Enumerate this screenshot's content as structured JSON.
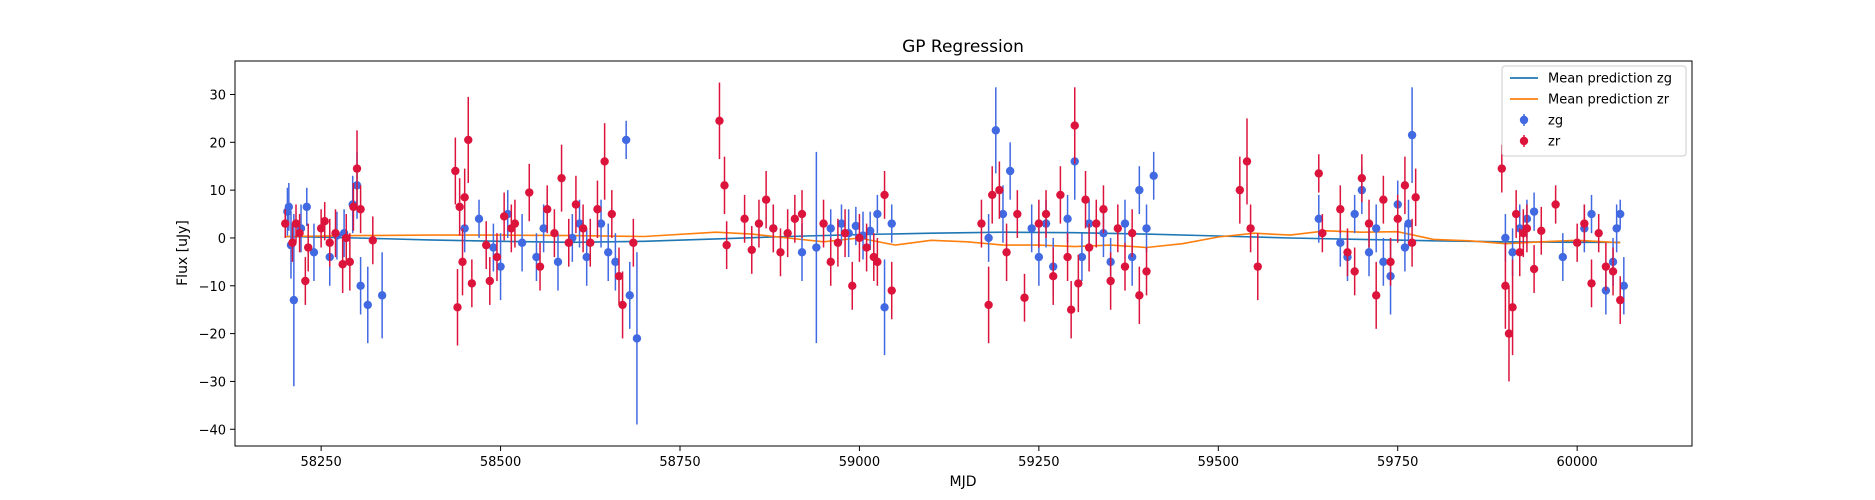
{
  "chart_data": {
    "type": "scatter",
    "title": "GP Regression",
    "xlabel": "MJD",
    "ylabel": "Flux [uJy]",
    "xlim": [
      58130,
      60160
    ],
    "ylim": [
      -43.5,
      37
    ],
    "xticks": [
      58250,
      58500,
      58750,
      59000,
      59250,
      59500,
      59750,
      60000
    ],
    "yticks": [
      -40,
      -30,
      -20,
      -10,
      0,
      10,
      20,
      30
    ],
    "grid": false,
    "legend_position": "top-right",
    "legend": [
      {
        "label": "Mean prediction zg",
        "kind": "line",
        "color": "#1f77b4"
      },
      {
        "label": "Mean prediction zr",
        "kind": "line",
        "color": "#ff7f0e"
      },
      {
        "label": "zg",
        "kind": "errorbar",
        "color": "#4169e1"
      },
      {
        "label": "zr",
        "kind": "errorbar",
        "color": "#dc143c"
      }
    ],
    "series": [
      {
        "name": "Mean prediction zg",
        "kind": "line",
        "color": "#1f77b4",
        "x": [
          58200,
          58300,
          58400,
          58500,
          58600,
          58700,
          58800,
          58900,
          59000,
          59100,
          59200,
          59300,
          59400,
          59500,
          59600,
          59700,
          59800,
          59900,
          60000,
          60060
        ],
        "y": [
          0.3,
          0.0,
          -0.4,
          -0.7,
          -0.9,
          -0.7,
          -0.2,
          0.3,
          0.7,
          1.0,
          1.2,
          1.1,
          0.8,
          0.4,
          0.0,
          -0.3,
          -0.6,
          -0.8,
          -0.9,
          -0.9
        ]
      },
      {
        "name": "Mean prediction zr",
        "kind": "line",
        "color": "#ff7f0e",
        "x": [
          58200,
          58300,
          58400,
          58500,
          58600,
          58700,
          58800,
          58850,
          58900,
          58950,
          59000,
          59050,
          59100,
          59150,
          59200,
          59250,
          59300,
          59350,
          59400,
          59450,
          59500,
          59550,
          59600,
          59650,
          59700,
          59750,
          59800,
          59850,
          59900,
          59950,
          60000,
          60060
        ],
        "y": [
          0.3,
          0.5,
          0.6,
          0.6,
          0.5,
          0.3,
          1.2,
          0.8,
          0.0,
          -0.8,
          0.0,
          -1.5,
          -0.5,
          -0.8,
          -1.5,
          -1.5,
          -1.8,
          -1.5,
          -2.0,
          -1.2,
          0.2,
          1.0,
          0.6,
          1.5,
          1.2,
          1.3,
          -0.3,
          -0.6,
          -1.2,
          -0.8,
          -0.5,
          -1.0
        ]
      },
      {
        "name": "zg",
        "kind": "errorbar",
        "color": "#4169e1",
        "points": [
          [
            58203,
            5.5,
            5
          ],
          [
            58205,
            6.5,
            5
          ],
          [
            58208,
            -1.5,
            7
          ],
          [
            58212,
            -13,
            18
          ],
          [
            58222,
            2,
            5
          ],
          [
            58230,
            6.5,
            4
          ],
          [
            58240,
            -3,
            6
          ],
          [
            58262,
            -4,
            6
          ],
          [
            58272,
            0.5,
            5
          ],
          [
            58282,
            1,
            5
          ],
          [
            58294,
            7,
            6
          ],
          [
            58300,
            11,
            7
          ],
          [
            58305,
            -10,
            6
          ],
          [
            58315,
            -14,
            8
          ],
          [
            58335,
            -12,
            9
          ],
          [
            58450,
            2,
            5
          ],
          [
            58470,
            4,
            4
          ],
          [
            58490,
            -2,
            5
          ],
          [
            58500,
            -6,
            7
          ],
          [
            58510,
            5,
            5
          ],
          [
            58530,
            -1,
            6
          ],
          [
            58550,
            -4,
            5
          ],
          [
            58560,
            2,
            5
          ],
          [
            58580,
            -5,
            6
          ],
          [
            58600,
            0,
            5
          ],
          [
            58610,
            3,
            5
          ],
          [
            58620,
            -4,
            6
          ],
          [
            58640,
            3,
            5
          ],
          [
            58650,
            -3,
            6
          ],
          [
            58660,
            -5,
            6
          ],
          [
            58675,
            20.5,
            4
          ],
          [
            58680,
            -12,
            7
          ],
          [
            58690,
            -21,
            18
          ],
          [
            58880,
            2,
            5
          ],
          [
            58920,
            -3,
            6
          ],
          [
            58940,
            -2,
            20
          ],
          [
            58960,
            2,
            4
          ],
          [
            58975,
            3,
            4
          ],
          [
            58985,
            1,
            5
          ],
          [
            58995,
            2.5,
            4
          ],
          [
            59005,
            0.5,
            5
          ],
          [
            59015,
            1.5,
            4
          ],
          [
            59025,
            5,
            4
          ],
          [
            59035,
            -14.5,
            10
          ],
          [
            59045,
            3,
            4
          ],
          [
            59180,
            0,
            5
          ],
          [
            59190,
            22.5,
            9
          ],
          [
            59200,
            5,
            6
          ],
          [
            59210,
            14,
            6
          ],
          [
            59240,
            2,
            5
          ],
          [
            59250,
            -4,
            6
          ],
          [
            59260,
            3,
            5
          ],
          [
            59270,
            -6,
            6
          ],
          [
            59290,
            4,
            5
          ],
          [
            59300,
            16,
            8
          ],
          [
            59310,
            -4,
            5
          ],
          [
            59320,
            3,
            5
          ],
          [
            59340,
            1,
            5
          ],
          [
            59350,
            -5,
            5
          ],
          [
            59370,
            3,
            5
          ],
          [
            59380,
            -4,
            6
          ],
          [
            59390,
            10,
            5
          ],
          [
            59400,
            2,
            5
          ],
          [
            59410,
            13,
            5
          ],
          [
            59640,
            4,
            5
          ],
          [
            59670,
            -1,
            5
          ],
          [
            59680,
            -4,
            5
          ],
          [
            59690,
            5,
            4
          ],
          [
            59700,
            10,
            5
          ],
          [
            59710,
            -3,
            5
          ],
          [
            59720,
            2,
            5
          ],
          [
            59730,
            -5,
            5
          ],
          [
            59740,
            -8,
            8
          ],
          [
            59750,
            7,
            5
          ],
          [
            59760,
            -2,
            5
          ],
          [
            59765,
            3,
            5
          ],
          [
            59770,
            21.5,
            10
          ],
          [
            59900,
            0,
            5
          ],
          [
            59910,
            -3,
            5
          ],
          [
            59920,
            2,
            5
          ],
          [
            59930,
            4,
            4
          ],
          [
            59940,
            5.5,
            4
          ],
          [
            59980,
            -4,
            5
          ],
          [
            60010,
            2,
            5
          ],
          [
            60020,
            5,
            4
          ],
          [
            60040,
            -11,
            5
          ],
          [
            60050,
            -5,
            5
          ],
          [
            60055,
            2,
            5
          ],
          [
            60060,
            5,
            3
          ],
          [
            60065,
            -10,
            6
          ]
        ]
      },
      {
        "name": "zr",
        "kind": "errorbar",
        "color": "#dc143c",
        "points": [
          [
            58200,
            3,
            3
          ],
          [
            58210,
            -1,
            4
          ],
          [
            58215,
            3,
            4
          ],
          [
            58220,
            1,
            4
          ],
          [
            58228,
            -9,
            5
          ],
          [
            58232,
            -2,
            5
          ],
          [
            58250,
            2,
            4
          ],
          [
            58255,
            3.5,
            4
          ],
          [
            58262,
            -1,
            5
          ],
          [
            58270,
            1,
            5
          ],
          [
            58280,
            -5.5,
            6
          ],
          [
            58285,
            0,
            5
          ],
          [
            58290,
            -5,
            6
          ],
          [
            58295,
            6.5,
            5
          ],
          [
            58300,
            14.5,
            8
          ],
          [
            58305,
            6,
            5
          ],
          [
            58322,
            -0.5,
            5
          ],
          [
            58437,
            14,
            7
          ],
          [
            58440,
            -14.5,
            8
          ],
          [
            58443,
            6.5,
            6
          ],
          [
            58447,
            -5,
            7
          ],
          [
            58450,
            8.5,
            6
          ],
          [
            58455,
            20.5,
            9
          ],
          [
            58460,
            -9.5,
            5
          ],
          [
            58480,
            -1.5,
            5
          ],
          [
            58485,
            -9,
            5
          ],
          [
            58495,
            -4,
            5
          ],
          [
            58505,
            4.5,
            5
          ],
          [
            58515,
            2,
            5
          ],
          [
            58520,
            3,
            5
          ],
          [
            58540,
            9.5,
            6
          ],
          [
            58555,
            -6,
            5
          ],
          [
            58565,
            6,
            5
          ],
          [
            58575,
            1,
            5
          ],
          [
            58585,
            12.5,
            7
          ],
          [
            58595,
            -1,
            5
          ],
          [
            58605,
            7,
            6
          ],
          [
            58615,
            2,
            5
          ],
          [
            58625,
            -1,
            5
          ],
          [
            58635,
            6,
            6
          ],
          [
            58645,
            16,
            8
          ],
          [
            58655,
            5,
            5
          ],
          [
            58665,
            -8,
            6
          ],
          [
            58670,
            -14,
            7
          ],
          [
            58685,
            -1,
            5
          ],
          [
            58805,
            24.5,
            8
          ],
          [
            58812,
            11,
            6
          ],
          [
            58815,
            -1.5,
            5
          ],
          [
            58840,
            4,
            5
          ],
          [
            58850,
            -2.5,
            5
          ],
          [
            58860,
            3,
            5
          ],
          [
            58870,
            8,
            6
          ],
          [
            58880,
            2,
            5
          ],
          [
            58890,
            -3,
            5
          ],
          [
            58900,
            1,
            5
          ],
          [
            58910,
            4,
            5
          ],
          [
            58920,
            5,
            5
          ],
          [
            58950,
            3,
            5
          ],
          [
            58960,
            -5,
            5
          ],
          [
            58970,
            -1,
            5
          ],
          [
            58980,
            1,
            5
          ],
          [
            58990,
            -10,
            5
          ],
          [
            59000,
            0,
            5
          ],
          [
            59010,
            -2,
            5
          ],
          [
            59020,
            -4,
            5
          ],
          [
            59025,
            -5,
            5
          ],
          [
            59035,
            9,
            5
          ],
          [
            59045,
            -11,
            6
          ],
          [
            59170,
            3,
            5
          ],
          [
            59180,
            -14,
            8
          ],
          [
            59185,
            9,
            6
          ],
          [
            59195,
            10,
            6
          ],
          [
            59205,
            -3,
            6
          ],
          [
            59220,
            5,
            5
          ],
          [
            59230,
            -12.5,
            5
          ],
          [
            59250,
            3,
            5
          ],
          [
            59260,
            5,
            5
          ],
          [
            59270,
            -8,
            6
          ],
          [
            59280,
            9,
            6
          ],
          [
            59290,
            -4,
            5
          ],
          [
            59295,
            -15,
            6
          ],
          [
            59300,
            23.5,
            8
          ],
          [
            59305,
            -9.5,
            6
          ],
          [
            59315,
            8,
            6
          ],
          [
            59320,
            -2,
            5
          ],
          [
            59330,
            3,
            5
          ],
          [
            59340,
            6,
            5
          ],
          [
            59350,
            -9,
            6
          ],
          [
            59360,
            2,
            5
          ],
          [
            59370,
            -6,
            5
          ],
          [
            59380,
            1,
            5
          ],
          [
            59390,
            -12,
            6
          ],
          [
            59400,
            -7,
            5
          ],
          [
            59530,
            10,
            7
          ],
          [
            59540,
            16,
            9
          ],
          [
            59545,
            2,
            5
          ],
          [
            59555,
            -6,
            7
          ],
          [
            59640,
            13.5,
            4
          ],
          [
            59645,
            1,
            4
          ],
          [
            59670,
            6,
            5
          ],
          [
            59680,
            -3,
            5
          ],
          [
            59690,
            -7,
            5
          ],
          [
            59700,
            12.5,
            5
          ],
          [
            59710,
            3,
            5
          ],
          [
            59720,
            -12,
            7
          ],
          [
            59730,
            8,
            5
          ],
          [
            59740,
            -5,
            5
          ],
          [
            59750,
            4,
            5
          ],
          [
            59760,
            11,
            6
          ],
          [
            59770,
            -1,
            5
          ],
          [
            59775,
            8.5,
            6
          ],
          [
            59895,
            14.5,
            5
          ],
          [
            59900,
            -10,
            9
          ],
          [
            59905,
            -20,
            10
          ],
          [
            59910,
            -14.5,
            10
          ],
          [
            59915,
            5,
            5
          ],
          [
            59920,
            -3,
            5
          ],
          [
            59925,
            1,
            5
          ],
          [
            59930,
            2,
            5
          ],
          [
            59940,
            -6.5,
            5
          ],
          [
            59950,
            1.5,
            5
          ],
          [
            59970,
            7,
            4
          ],
          [
            60000,
            -1,
            4
          ],
          [
            60010,
            3,
            4
          ],
          [
            60020,
            -9.5,
            5
          ],
          [
            60030,
            1,
            4
          ],
          [
            60040,
            -6,
            5
          ],
          [
            60050,
            -7,
            5
          ],
          [
            60060,
            -13,
            5
          ]
        ]
      }
    ]
  }
}
